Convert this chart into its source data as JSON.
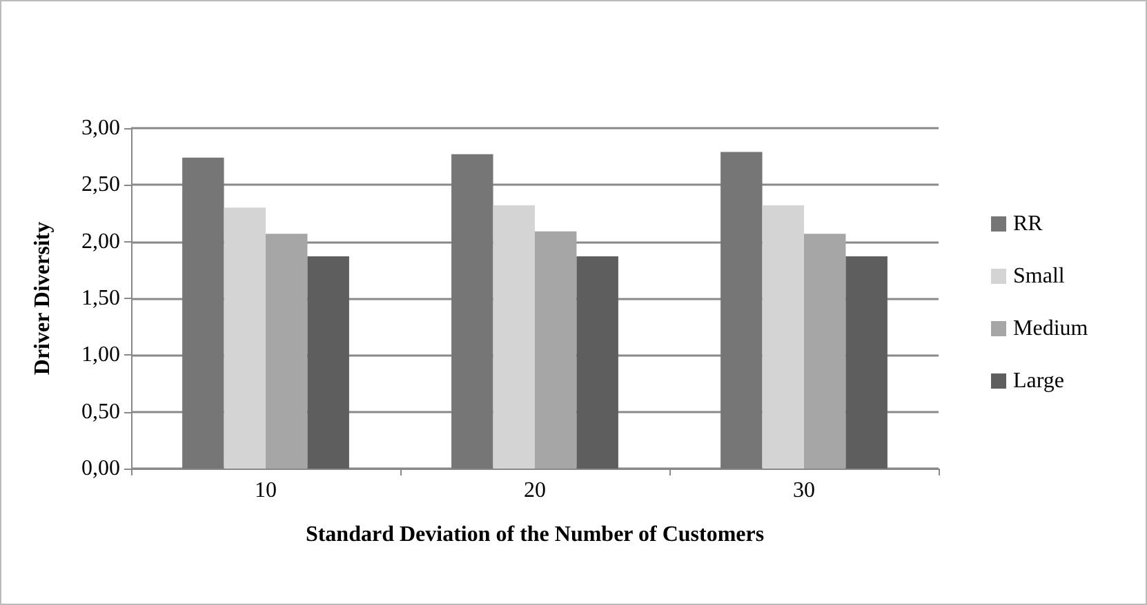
{
  "chart_data": {
    "type": "bar",
    "xlabel": "Standard Deviation of the Number of Customers",
    "ylabel": "Driver Diversity",
    "categories": [
      "10",
      "20",
      "30"
    ],
    "series": [
      {
        "name": "RR",
        "color": "#767676",
        "values": [
          2.74,
          2.77,
          2.79
        ]
      },
      {
        "name": "Small",
        "color": "#d4d4d4",
        "values": [
          2.3,
          2.32,
          2.32
        ]
      },
      {
        "name": "Medium",
        "color": "#a6a6a6",
        "values": [
          2.07,
          2.09,
          2.07
        ]
      },
      {
        "name": "Large",
        "color": "#5e5e5e",
        "values": [
          1.87,
          1.87,
          1.87
        ]
      }
    ],
    "ylim": [
      0,
      3
    ],
    "yticks": [
      {
        "value": 0,
        "label": "0,00"
      },
      {
        "value": 0.5,
        "label": "0,50"
      },
      {
        "value": 1,
        "label": "1,00"
      },
      {
        "value": 1.5,
        "label": "1,50"
      },
      {
        "value": 2,
        "label": "2,00"
      },
      {
        "value": 2.5,
        "label": "2,50"
      },
      {
        "value": 3,
        "label": "3,00"
      }
    ],
    "grid": "y",
    "legend": "right"
  }
}
